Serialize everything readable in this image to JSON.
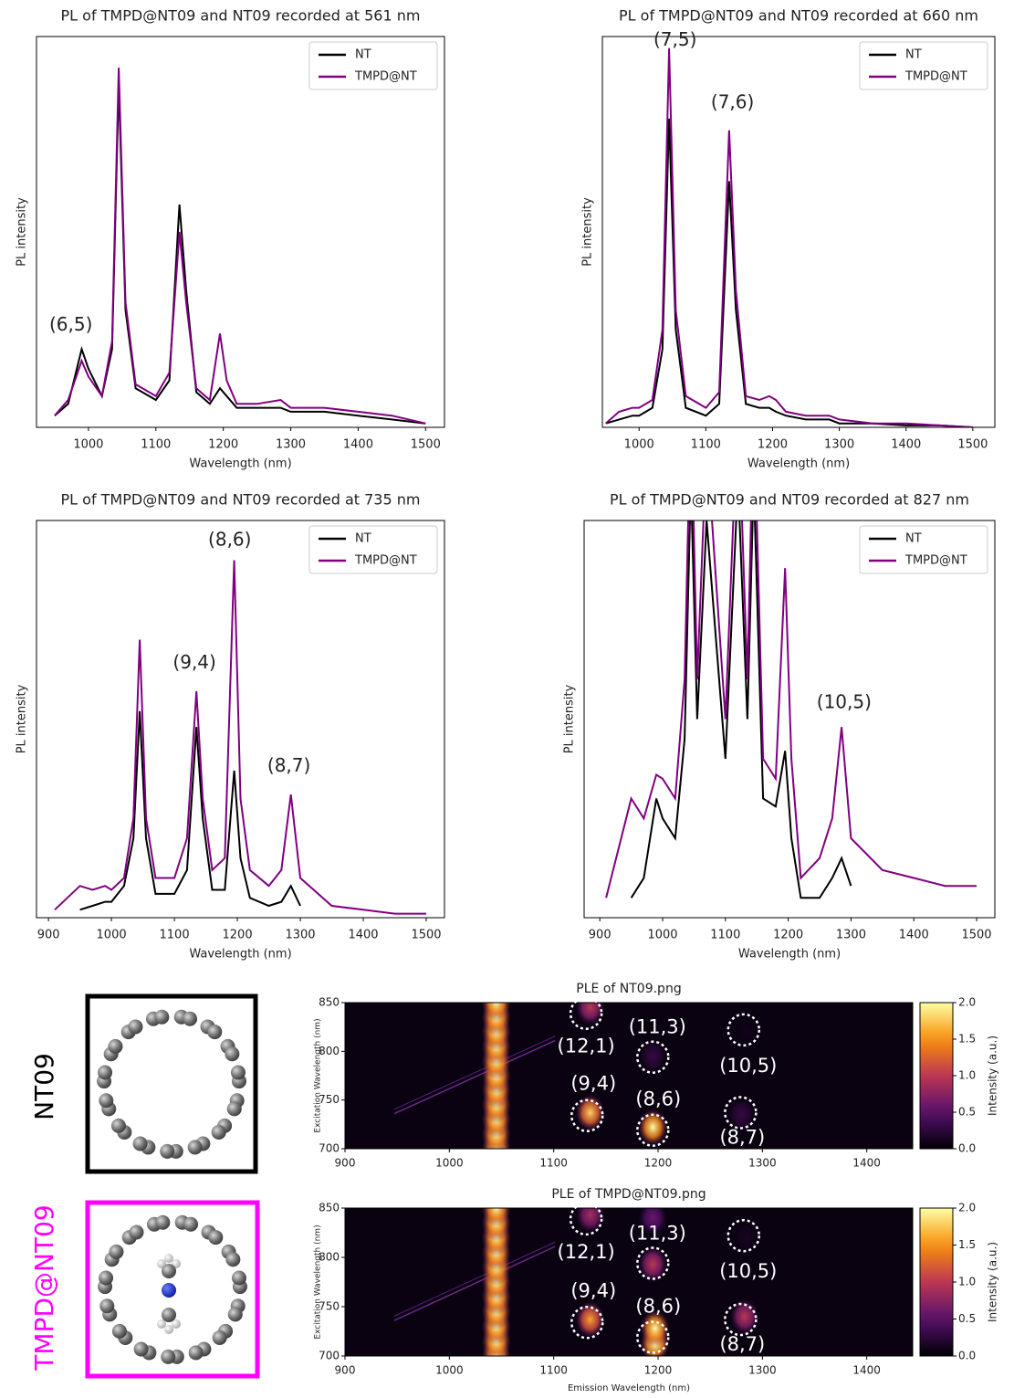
{
  "side_labels": [
    "NT09",
    "TMPD@NT09"
  ],
  "chart_data": [
    {
      "type": "line",
      "title": "PL of TMPD@NT09 and NT09 recorded at 561 nm",
      "xlabel": "Wavelength (nm)",
      "ylabel": "PL intensity",
      "x": [
        950,
        970,
        990,
        1000,
        1020,
        1035,
        1045,
        1055,
        1070,
        1100,
        1120,
        1135,
        1145,
        1160,
        1180,
        1195,
        1205,
        1220,
        1250,
        1285,
        1300,
        1350,
        1400,
        1450,
        1500
      ],
      "series": [
        {
          "name": "NT",
          "color": "#000000",
          "values": [
            3,
            6,
            20,
            15,
            8,
            20,
            88,
            30,
            10,
            7,
            12,
            57,
            35,
            9,
            6,
            10,
            8,
            5,
            5,
            5,
            4,
            4,
            3,
            2,
            1
          ]
        },
        {
          "name": "TMPD@NT",
          "color": "#800080",
          "values": [
            3,
            7,
            17,
            13,
            8,
            22,
            92,
            32,
            11,
            8,
            14,
            50,
            32,
            10,
            7,
            24,
            12,
            6,
            6,
            7,
            5,
            5,
            4,
            3,
            1
          ]
        }
      ],
      "xlim": [
        923,
        1528
      ],
      "xticks": [
        1000,
        1100,
        1200,
        1300,
        1400,
        1500
      ],
      "ylim": [
        0,
        100
      ],
      "legend": "upper right",
      "annotations": [
        {
          "text": "(6,5)",
          "x": 974,
          "y": 26
        }
      ]
    },
    {
      "type": "line",
      "title": "PL of TMPD@NT09 and NT09 recorded at 660 nm",
      "xlabel": "Wavelength (nm)",
      "ylabel": "PL intensity",
      "x": [
        950,
        970,
        990,
        1000,
        1020,
        1035,
        1045,
        1055,
        1070,
        1100,
        1120,
        1135,
        1145,
        1160,
        1180,
        1195,
        1205,
        1220,
        1250,
        1285,
        1300,
        1350,
        1400,
        1450,
        1500
      ],
      "series": [
        {
          "name": "NT",
          "color": "#000000",
          "values": [
            1,
            2,
            3,
            3,
            5,
            20,
            79,
            25,
            5,
            3,
            6,
            63,
            30,
            6,
            5,
            5,
            4,
            3,
            2,
            2,
            1,
            1,
            0.5,
            0.5,
            0
          ]
        },
        {
          "name": "TMPD@NT",
          "color": "#800080",
          "values": [
            1,
            4,
            5,
            5,
            7,
            25,
            97,
            30,
            8,
            5,
            9,
            76,
            35,
            8,
            7,
            8,
            7,
            4,
            3,
            3,
            2,
            1,
            1,
            0.5,
            0
          ]
        }
      ],
      "xlim": [
        945,
        1533
      ],
      "xticks": [
        1000,
        1100,
        1200,
        1300,
        1400,
        1500
      ],
      "ylim": [
        0,
        100
      ],
      "legend": "upper right",
      "annotations": [
        {
          "text": "(7,5)",
          "x": 1054,
          "y": 99
        },
        {
          "text": "(7,6)",
          "x": 1140,
          "y": 83
        }
      ]
    },
    {
      "type": "line",
      "title": "PL of TMPD@NT09 and NT09 recorded at 735 nm",
      "xlabel": "Wavelength (nm)",
      "ylabel": "PL intensity",
      "x": [
        910,
        950,
        970,
        990,
        1000,
        1020,
        1035,
        1045,
        1055,
        1070,
        1100,
        1120,
        1135,
        1145,
        1160,
        1180,
        1195,
        1205,
        1220,
        1250,
        1270,
        1285,
        1300,
        1350,
        1400,
        1450,
        1500
      ],
      "series": [
        {
          "name": "NT",
          "color": "#000000",
          "values": [
            null,
            2,
            3,
            4,
            4,
            8,
            20,
            52,
            20,
            6,
            6,
            12,
            48,
            25,
            7,
            7,
            37,
            15,
            5,
            3,
            4,
            8,
            3,
            null,
            null,
            null,
            null
          ]
        },
        {
          "name": "TMPD@NT",
          "color": "#800080",
          "values": [
            2,
            8,
            7,
            8,
            7,
            10,
            25,
            70,
            25,
            10,
            10,
            20,
            57,
            30,
            12,
            15,
            90,
            30,
            12,
            8,
            12,
            31,
            10,
            3,
            2,
            1,
            1
          ]
        }
      ],
      "xlim": [
        881,
        1529
      ],
      "xticks": [
        900,
        1000,
        1100,
        1200,
        1300,
        1400,
        1500
      ],
      "ylim": [
        0,
        100
      ],
      "legend": "upper right",
      "annotations": [
        {
          "text": "(8,6)",
          "x": 1188,
          "y": 95
        },
        {
          "text": "(9,4)",
          "x": 1132,
          "y": 64
        },
        {
          "text": "(8,7)",
          "x": 1282,
          "y": 38
        }
      ]
    },
    {
      "type": "line",
      "title": "PL of TMPD@NT09 and NT09 recorded at 827 nm",
      "xlabel": "Wavelength (nm)",
      "ylabel": "PL intensity",
      "x": [
        910,
        950,
        970,
        990,
        1000,
        1020,
        1035,
        1045,
        1055,
        1070,
        1100,
        1120,
        1135,
        1145,
        1160,
        1180,
        1195,
        1205,
        1220,
        1250,
        1270,
        1285,
        1300,
        1350,
        1400,
        1450,
        1500
      ],
      "series": [
        {
          "name": "NT",
          "color": "#000000",
          "values": [
            null,
            5,
            10,
            30,
            25,
            20,
            45,
            110,
            50,
            100,
            40,
            110,
            50,
            110,
            30,
            28,
            42,
            20,
            5,
            5,
            10,
            15,
            8,
            null,
            null,
            null,
            null
          ]
        },
        {
          "name": "TMPD@NT",
          "color": "#800080",
          "values": [
            5,
            30,
            25,
            36,
            35,
            30,
            60,
            130,
            60,
            120,
            50,
            130,
            60,
            130,
            40,
            35,
            88,
            40,
            10,
            15,
            25,
            48,
            20,
            12,
            10,
            8,
            8
          ]
        }
      ],
      "xlim": [
        875,
        1529
      ],
      "xticks": [
        900,
        1000,
        1100,
        1200,
        1300,
        1400,
        1500
      ],
      "ylim": [
        0,
        100
      ],
      "legend": "upper right",
      "annotations": [
        {
          "text": "(10,5)",
          "x": 1289,
          "y": 54
        }
      ]
    },
    {
      "type": "heatmap",
      "title": "PLE of NT09.png",
      "ylabel": "Excitation Wavelength (nm)",
      "colorbar_label": "Intensity (a.u.)",
      "xlim": [
        900,
        1444
      ],
      "xticks": [
        900,
        1000,
        1100,
        1200,
        1300,
        1400
      ],
      "ylim": [
        700,
        850
      ],
      "yticks": [
        700,
        750,
        800,
        850
      ],
      "zlim": [
        0,
        2
      ],
      "zticks": [
        {
          "value": 0,
          "label": "0.0"
        },
        0.5,
        {
          "value": 1,
          "label": "1.0"
        },
        1.5,
        {
          "value": 2,
          "label": "2.0"
        }
      ],
      "peaks": {
        "emission": [
          1045,
          1045,
          1045,
          1045,
          1045,
          1045,
          1045,
          1045,
          1045,
          1045,
          1045,
          1135,
          1135,
          1195,
          1195,
          1285,
          1280
        ],
        "excitation": [
          700,
          715,
          730,
          745,
          760,
          775,
          790,
          805,
          820,
          835,
          850,
          737,
          845,
          722,
          795,
          820,
          735
        ],
        "intensity": [
          2,
          2,
          2,
          2,
          2,
          2,
          2,
          2,
          2,
          2,
          2,
          1.8,
          1,
          2,
          0.3,
          0.1,
          0.3
        ]
      },
      "annotations": [
        {
          "text": "(12,1)",
          "x": 1131,
          "y": 839
        },
        {
          "text": "(11,3)",
          "x": 1195,
          "y": 794
        },
        {
          "text": "(10,5)",
          "x": 1282,
          "y": 822
        },
        {
          "text": "(9,4)",
          "x": 1132,
          "y": 734
        },
        {
          "text": "(8,6)",
          "x": 1195,
          "y": 719
        },
        {
          "text": "(8,7)",
          "x": 1279,
          "y": 737
        }
      ]
    },
    {
      "type": "heatmap",
      "title": "PLE of TMPD@NT09.png",
      "xlabel": "Emission Wavelength (nm)",
      "ylabel": "Excitation Wavelength (nm)",
      "colorbar_label": "Intensity (a.u.)",
      "xlim": [
        900,
        1444
      ],
      "xticks": [
        900,
        1000,
        1100,
        1200,
        1300,
        1400
      ],
      "ylim": [
        700,
        850
      ],
      "yticks": [
        700,
        750,
        800,
        850
      ],
      "zlim": [
        0,
        2
      ],
      "zticks": [
        {
          "value": 0,
          "label": "0.0"
        },
        0.5,
        {
          "value": 1,
          "label": "1.0"
        },
        1.5,
        {
          "value": 2,
          "label": "2.0"
        }
      ],
      "peaks": {
        "emission": [
          1045,
          1045,
          1045,
          1045,
          1045,
          1045,
          1045,
          1045,
          1045,
          1045,
          1045,
          1135,
          1135,
          1197,
          1197,
          1195,
          1195,
          1283,
          1285
        ],
        "excitation": [
          700,
          715,
          730,
          745,
          760,
          775,
          790,
          805,
          820,
          835,
          850,
          737,
          843,
          712,
          728,
          793,
          840,
          740,
          820
        ],
        "intensity": [
          2,
          2,
          2,
          2,
          2,
          2,
          2,
          2,
          2,
          2,
          2,
          1.6,
          0.9,
          2,
          2,
          1,
          0.6,
          1,
          0.15
        ]
      },
      "annotations": [
        {
          "text": "(12,1)",
          "x": 1131,
          "y": 839
        },
        {
          "text": "(11,3)",
          "x": 1195,
          "y": 794
        },
        {
          "text": "(10,5)",
          "x": 1282,
          "y": 822
        },
        {
          "text": "(9,4)",
          "x": 1132,
          "y": 734
        },
        {
          "text": "(8,6)",
          "x": 1195,
          "y": 719
        },
        {
          "text": "(8,7)",
          "x": 1279,
          "y": 737
        }
      ]
    }
  ]
}
